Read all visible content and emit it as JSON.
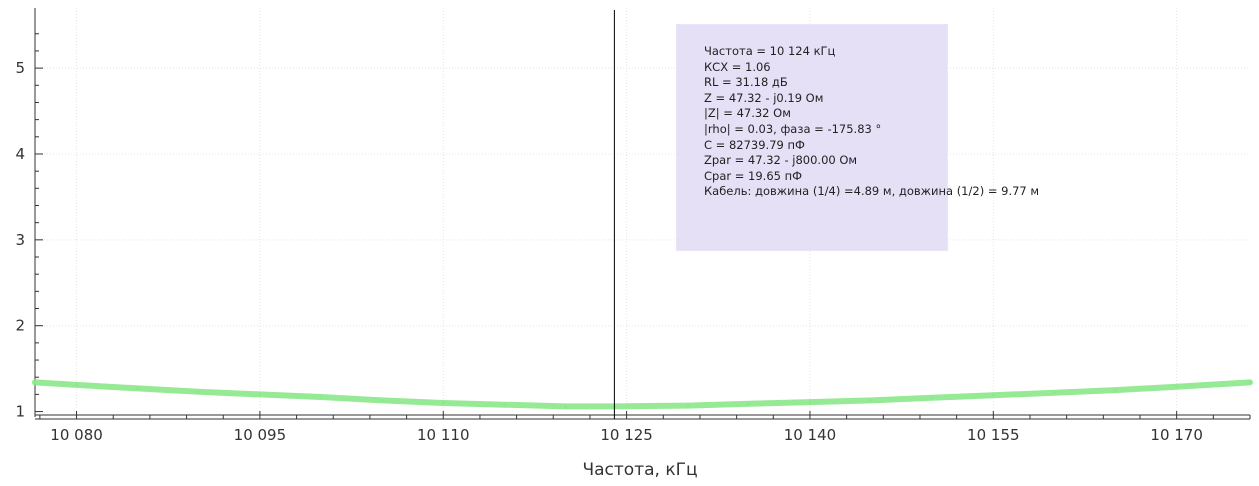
{
  "chart_data": {
    "type": "line",
    "xlabel": "Частота, кГц",
    "ylabel": "",
    "xlim": [
      10076.6,
      10176
    ],
    "ylim": [
      0.96,
      5.7
    ],
    "x_tick_labels": [
      "10 080",
      "10 095",
      "10 110",
      "10 125",
      "10 140",
      "10 155",
      "10 170"
    ],
    "y_tick_labels": [
      "1",
      "2",
      "3",
      "4",
      "5"
    ],
    "grid": true,
    "series": [
      {
        "color": "#8be88b",
        "x": [
          10076.6,
          10080,
          10085,
          10090,
          10095,
          10100,
          10105,
          10110,
          10115,
          10120,
          10124,
          10130,
          10135,
          10140,
          10145,
          10150,
          10155,
          10160,
          10165,
          10170,
          10176
        ],
        "y": [
          1.34,
          1.31,
          1.27,
          1.23,
          1.2,
          1.17,
          1.13,
          1.1,
          1.08,
          1.06,
          1.06,
          1.07,
          1.09,
          1.11,
          1.13,
          1.16,
          1.19,
          1.22,
          1.25,
          1.29,
          1.34
        ]
      }
    ],
    "cursor": {
      "x": 10124
    }
  },
  "tooltip": {
    "lines": [
      "Частота = 10 124 кГц",
      "КСХ = 1.06",
      "RL = 31.18 дБ",
      "Z = 47.32 - j0.19 Ом",
      "|Z| = 47.32 Ом",
      "|rho| = 0.03, фаза = -175.83 °",
      "C = 82739.79 пФ",
      "Zpar = 47.32 - j800.00 Ом",
      "Cpar = 19.65 пФ",
      "Кабель: довжина (1/4) =4.89 м, довжина (1/2) = 9.77 м"
    ]
  },
  "colors": {
    "background": "#ffffff",
    "axis": "#333333",
    "grid": "#e4e4e4",
    "cursor": "#000000",
    "tooltip_bg": "#e2daf4"
  }
}
